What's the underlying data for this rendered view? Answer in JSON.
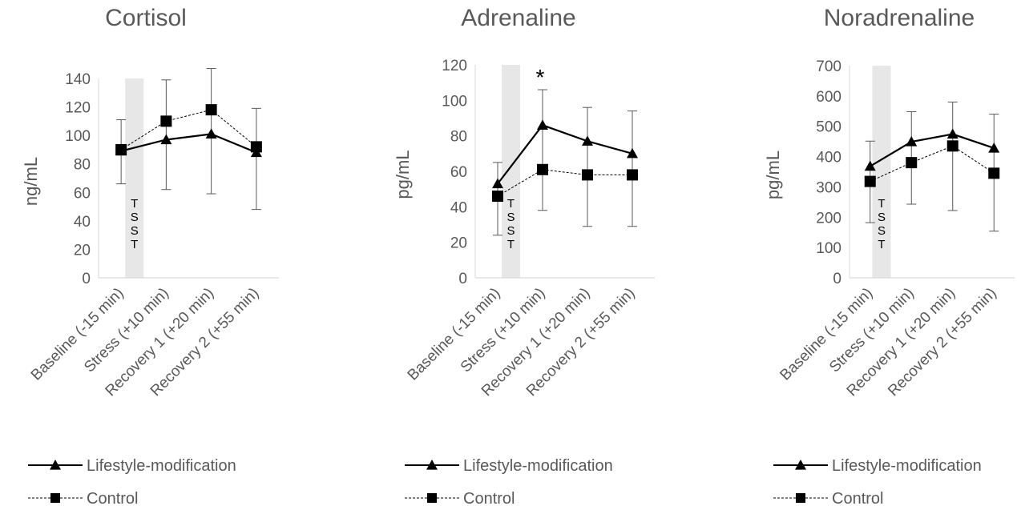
{
  "shared": {
    "categories": [
      "Baseline (-15 min)",
      "Stress (+10 min)",
      "Recovery 1 (+20 min)",
      "Recovery 2 (+55 min)"
    ],
    "series_names": [
      "Lifestyle-modification",
      "Control"
    ],
    "stress_band_label": [
      "T",
      "S",
      "S",
      "T"
    ]
  },
  "chart_data": [
    {
      "type": "line",
      "title": "Cortisol",
      "ylabel": "ng/mL",
      "xlabel": "",
      "ylim": [
        0,
        140
      ],
      "yticks": [
        0,
        20,
        40,
        60,
        80,
        100,
        120,
        140
      ],
      "categories": [
        "Baseline (-15 min)",
        "Stress (+10 min)",
        "Recovery 1 (+20 min)",
        "Recovery 2 (+55 min)"
      ],
      "series": [
        {
          "name": "Lifestyle-modification",
          "marker": "triangle",
          "line": "solid",
          "values": [
            89,
            97,
            101,
            88
          ],
          "err_low": [
            66,
            62,
            59,
            48
          ],
          "err_high": [
            111,
            139,
            147,
            119
          ]
        },
        {
          "name": "Control",
          "marker": "square",
          "line": "dashed",
          "values": [
            90,
            110,
            118,
            92
          ],
          "err_low": [
            66,
            62,
            59,
            48
          ],
          "err_high": [
            111,
            139,
            147,
            119
          ]
        }
      ],
      "annotations": [],
      "grid": false,
      "legend": "bottom-left"
    },
    {
      "type": "line",
      "title": "Adrenaline",
      "ylabel": "pg/mL",
      "xlabel": "",
      "ylim": [
        0,
        120
      ],
      "yticks": [
        0,
        20,
        40,
        60,
        80,
        100,
        120
      ],
      "categories": [
        "Baseline (-15 min)",
        "Stress (+10 min)",
        "Recovery 1 (+20 min)",
        "Recovery 2 (+55 min)"
      ],
      "series": [
        {
          "name": "Lifestyle-modification",
          "marker": "triangle",
          "line": "solid",
          "values": [
            53,
            86,
            77,
            70
          ],
          "err_low": [
            24,
            38,
            29,
            29
          ],
          "err_high": [
            65,
            106,
            96,
            94
          ]
        },
        {
          "name": "Control",
          "marker": "square",
          "line": "dashed",
          "values": [
            46,
            61,
            58,
            58
          ],
          "err_low": [
            24,
            38,
            29,
            29
          ],
          "err_high": [
            65,
            106,
            96,
            94
          ]
        }
      ],
      "annotations": [
        {
          "text": "*",
          "category": "Stress (+10 min)"
        }
      ],
      "grid": false,
      "legend": "bottom-left"
    },
    {
      "type": "line",
      "title": "Noradrenaline",
      "ylabel": "pg/mL",
      "xlabel": "",
      "ylim": [
        0,
        700
      ],
      "yticks": [
        0,
        100,
        200,
        300,
        400,
        500,
        600,
        700
      ],
      "categories": [
        "Baseline (-15 min)",
        "Stress (+10 min)",
        "Recovery 1 (+20 min)",
        "Recovery 2 (+55 min)"
      ],
      "series": [
        {
          "name": "Lifestyle-modification",
          "marker": "triangle",
          "line": "solid",
          "values": [
            368,
            449,
            474,
            428
          ],
          "err_low": [
            182,
            243,
            222,
            154
          ],
          "err_high": [
            451,
            548,
            580,
            540
          ]
        },
        {
          "name": "Control",
          "marker": "square",
          "line": "dashed",
          "values": [
            318,
            380,
            435,
            345
          ],
          "err_low": [
            182,
            243,
            222,
            154
          ],
          "err_high": [
            451,
            548,
            580,
            540
          ]
        }
      ],
      "annotations": [],
      "grid": false,
      "legend": "bottom-left"
    }
  ],
  "colors": {
    "text": "#595959",
    "axis": "#d9d9d9",
    "line": "#000000",
    "errorbar": "#595959",
    "stress_band": "#e7e7e7"
  }
}
